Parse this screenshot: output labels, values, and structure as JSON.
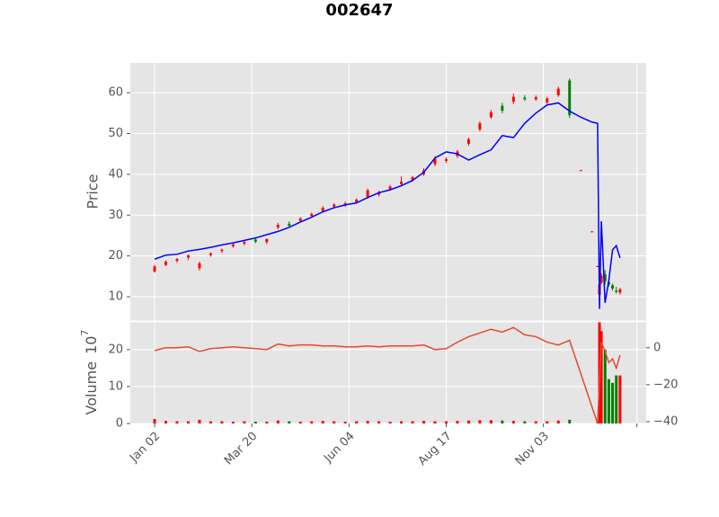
{
  "chart_data": {
    "type": "candlestick",
    "title": "002647",
    "x": [
      0,
      6,
      12,
      18,
      24,
      30,
      36,
      42,
      48,
      54,
      60,
      66,
      72,
      78,
      84,
      90,
      96,
      102,
      108,
      114,
      120,
      126,
      132,
      138,
      144,
      150,
      156,
      162,
      168,
      174,
      180,
      186,
      192,
      198,
      204,
      210,
      216,
      222,
      228,
      234,
      237,
      238,
      239,
      241,
      243,
      245,
      247,
      249
    ],
    "xlim": [
      -13,
      263
    ],
    "xticks": [
      {
        "value": 0,
        "label": "Jan 02"
      },
      {
        "value": 52,
        "label": "Mar 20"
      },
      {
        "value": 104,
        "label": "Jun 04"
      },
      {
        "value": 156,
        "label": "Aug 17"
      },
      {
        "value": 208,
        "label": "Nov 03"
      },
      {
        "value": 258,
        "label": null
      }
    ],
    "open": [
      16.2,
      17.8,
      18.8,
      19.6,
      17.0,
      20.2,
      21.2,
      22.4,
      23.0,
      24.0,
      23.4,
      27.0,
      27.9,
      28.6,
      29.8,
      31.0,
      32.1,
      32.4,
      33.2,
      34.5,
      35.0,
      36.4,
      37.6,
      38.6,
      40.0,
      42.5,
      43.3,
      44.5,
      47.5,
      51.0,
      54.0,
      56.8,
      57.8,
      58.8,
      58.4,
      57.6,
      59.4,
      63.0,
      41.0,
      26.0,
      17.4,
      10.5,
      13.5,
      15.5,
      13.6,
      12.8,
      11.5,
      11.0
    ],
    "high": [
      17.8,
      18.9,
      19.5,
      20.4,
      18.6,
      20.9,
      21.8,
      23.1,
      23.8,
      24.4,
      24.3,
      28.1,
      28.5,
      29.5,
      30.6,
      32.2,
      32.9,
      33.3,
      34.1,
      36.5,
      36.0,
      37.4,
      39.5,
      39.6,
      41.5,
      44.5,
      44.2,
      46.0,
      49.0,
      53.0,
      55.8,
      57.5,
      59.8,
      59.4,
      59.3,
      59.0,
      61.5,
      63.5,
      41.1,
      26.1,
      17.6,
      13.5,
      15.8,
      16.5,
      14.5,
      13.2,
      12.4,
      12.2
    ],
    "low": [
      15.9,
      17.5,
      18.3,
      19.0,
      16.4,
      19.8,
      20.7,
      22.0,
      22.6,
      23.1,
      22.9,
      26.5,
      27.1,
      28.2,
      29.4,
      30.6,
      31.6,
      32.0,
      32.8,
      34.0,
      34.6,
      36.0,
      37.2,
      38.2,
      39.6,
      42.0,
      42.8,
      44.0,
      47.0,
      50.5,
      53.6,
      55.0,
      57.2,
      58.0,
      58.0,
      57.2,
      59.0,
      53.8,
      40.9,
      25.9,
      17.3,
      10.0,
      13.0,
      13.0,
      12.5,
      11.5,
      10.8,
      10.6
    ],
    "close": [
      17.4,
      18.6,
      19.2,
      20.1,
      18.2,
      20.6,
      21.5,
      22.8,
      23.4,
      23.5,
      24.1,
      27.6,
      27.4,
      29.2,
      30.3,
      31.8,
      32.6,
      32.9,
      33.8,
      36.1,
      35.6,
      37.0,
      38.2,
      39.3,
      41.0,
      43.8,
      43.7,
      45.6,
      48.6,
      52.5,
      55.2,
      55.6,
      59.0,
      58.4,
      58.9,
      58.6,
      61.0,
      54.5,
      41.0,
      26.0,
      17.5,
      13.0,
      15.2,
      13.8,
      13.0,
      12.0,
      11.2,
      11.8
    ],
    "up_color": "#ff0000",
    "down_color": "#008000",
    "ylabel": "Price",
    "ylim": [
      4.05,
      67.3
    ],
    "yticks": [
      10,
      20,
      30,
      40,
      50,
      60
    ],
    "grid": true,
    "ma": {
      "color": "#0000ff",
      "values": [
        19.2,
        20.2,
        20.4,
        21.2,
        21.6,
        22.1,
        22.7,
        23.2,
        23.8,
        24.4,
        25.2,
        26.0,
        27.0,
        28.3,
        29.5,
        30.8,
        31.8,
        32.5,
        33.0,
        34.3,
        35.5,
        36.2,
        37.2,
        38.5,
        40.5,
        44.0,
        45.5,
        45.0,
        43.5,
        44.8,
        46.0,
        49.5,
        49.0,
        52.5,
        55.0,
        57.0,
        57.5,
        55.5,
        54.0,
        52.8,
        52.5,
        7.0,
        28.5,
        8.5,
        14.0,
        21.5,
        22.5,
        19.5
      ]
    },
    "volume": {
      "ylabel": "Volume",
      "scale_base": "10",
      "scale_power": "7",
      "values": [
        1.2,
        0.7,
        0.6,
        0.6,
        1.0,
        0.6,
        0.6,
        0.5,
        0.6,
        0.5,
        0.5,
        0.8,
        0.6,
        0.5,
        0.6,
        0.7,
        0.6,
        0.5,
        0.6,
        0.7,
        0.6,
        0.5,
        0.6,
        0.6,
        0.7,
        0.6,
        0.6,
        0.7,
        0.8,
        0.9,
        0.9,
        0.8,
        0.7,
        0.6,
        0.6,
        0.6,
        0.8,
        1.0,
        0,
        0,
        0.2,
        27.5,
        25.0,
        20.0,
        12.0,
        11.0,
        13.0,
        13.0
      ],
      "ylim": [
        0,
        27.5
      ],
      "yticks": [
        0,
        10,
        20
      ]
    },
    "y2": {
      "color": "#e24a33",
      "values": [
        -1.5,
        0,
        0,
        0.5,
        -2,
        -0.5,
        0,
        0.5,
        0,
        -0.5,
        -1,
        2,
        1,
        1.5,
        1.5,
        1,
        1,
        0.5,
        0.5,
        1,
        0.5,
        1,
        1,
        1,
        1.5,
        -1,
        -0.5,
        3,
        6,
        8,
        10,
        8.5,
        11,
        7,
        6,
        3,
        1.5,
        4,
        -14,
        -32,
        -41,
        -18,
        3,
        -2,
        -8,
        -6,
        -11,
        -4
      ],
      "ylim": [
        -41,
        14
      ],
      "yticks": [
        0,
        {
          "value": -20,
          "label": "−20"
        },
        {
          "value": -40,
          "label": "−40"
        }
      ]
    }
  }
}
